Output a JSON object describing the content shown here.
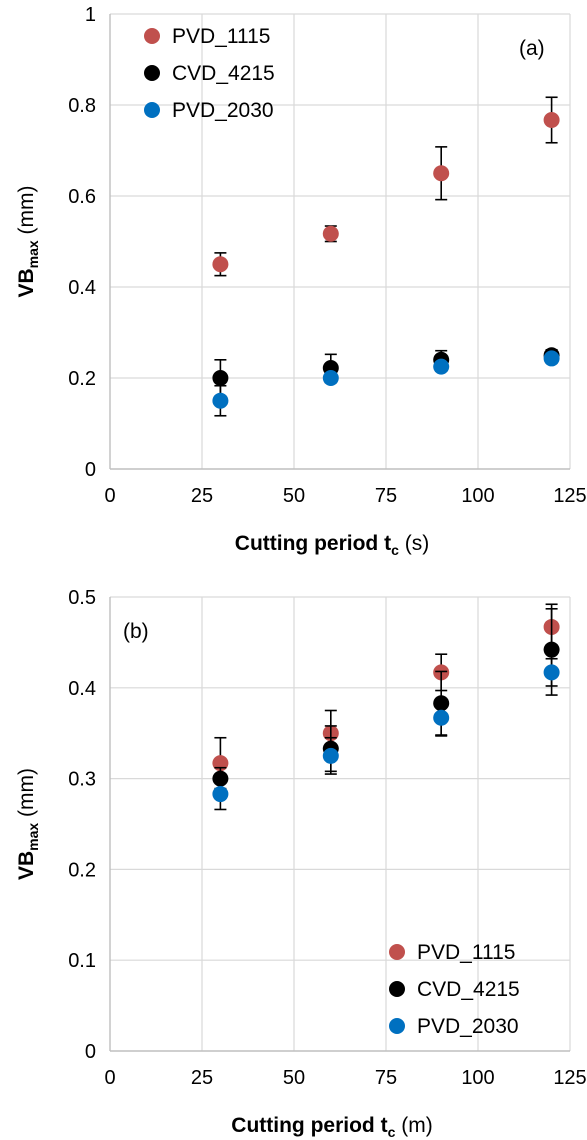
{
  "chart_data": [
    {
      "type": "scatter",
      "panel_label": "(a)",
      "xlabel_main": "Cutting period t",
      "xlabel_sub": "c",
      "xlabel_unit": " (s)",
      "ylabel_main": "VB",
      "ylabel_sub": "max",
      "ylabel_unit": " (mm)",
      "xlim": [
        0,
        125
      ],
      "ylim": [
        0,
        1
      ],
      "xticks": [
        "0",
        "25",
        "50",
        "75",
        "100",
        "125"
      ],
      "yticks": [
        "0",
        "0.2",
        "0.4",
        "0.6",
        "0.8",
        "1"
      ],
      "grid": true,
      "legend_position": "top-left",
      "series": [
        {
          "name": "PVD_1115",
          "color": "#c0504d",
          "x": [
            30,
            60,
            90,
            120
          ],
          "y": [
            0.45,
            0.517,
            0.65,
            0.767
          ],
          "err": [
            0.025,
            0.017,
            0.058,
            0.05
          ]
        },
        {
          "name": "CVD_4215",
          "color": "#000000",
          "x": [
            30,
            60,
            90,
            120
          ],
          "y": [
            0.2,
            0.222,
            0.24,
            0.25
          ],
          "err": [
            0.04,
            0.03,
            0.02,
            0.012
          ]
        },
        {
          "name": "PVD_2030",
          "color": "#0070c0",
          "x": [
            30,
            60,
            90,
            120
          ],
          "y": [
            0.15,
            0.2,
            0.225,
            0.243
          ],
          "err": [
            0.033,
            0.01,
            0.01,
            0.01
          ]
        }
      ]
    },
    {
      "type": "scatter",
      "panel_label": "(b)",
      "xlabel_main": "Cutting period t",
      "xlabel_sub": "c",
      "xlabel_unit": " (m)",
      "ylabel_main": "VB",
      "ylabel_sub": "max",
      "ylabel_unit": " (mm)",
      "xlim": [
        0,
        125
      ],
      "ylim": [
        0,
        0.5
      ],
      "xticks": [
        "0",
        "25",
        "50",
        "75",
        "100",
        "125"
      ],
      "yticks": [
        "0",
        "0.1",
        "0.2",
        "0.3",
        "0.4",
        "0.5"
      ],
      "grid": true,
      "legend_position": "bottom-right",
      "series": [
        {
          "name": "PVD_1115",
          "color": "#c0504d",
          "x": [
            30,
            60,
            90,
            120
          ],
          "y": [
            0.317,
            0.35,
            0.417,
            0.467
          ],
          "err": [
            0.028,
            0.025,
            0.02,
            0.02
          ]
        },
        {
          "name": "CVD_4215",
          "color": "#000000",
          "x": [
            30,
            60,
            90,
            120
          ],
          "y": [
            0.3,
            0.333,
            0.383,
            0.442
          ],
          "err": [
            0.012,
            0.025,
            0.035,
            0.05
          ]
        },
        {
          "name": "PVD_2030",
          "color": "#0070c0",
          "x": [
            30,
            60,
            90,
            120
          ],
          "y": [
            0.283,
            0.325,
            0.367,
            0.417
          ],
          "err": [
            0.017,
            0.02,
            0.02,
            0.015
          ]
        }
      ]
    }
  ]
}
